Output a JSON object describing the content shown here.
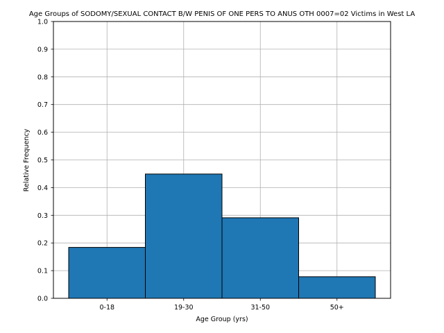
{
  "chart_data": {
    "type": "bar",
    "title": "Age Groups of SODOMY/SEXUAL CONTACT B/W PENIS OF ONE PERS TO ANUS OTH 0007=02 Victims in West LA",
    "xlabel": "Age Group (yrs)",
    "ylabel": "Relative Frequency",
    "categories": [
      "0-18",
      "19-30",
      "31-50",
      "50+"
    ],
    "values": [
      0.184,
      0.449,
      0.291,
      0.078
    ],
    "ylim": [
      0,
      1.0
    ],
    "yticks": [
      0.0,
      0.1,
      0.2,
      0.3,
      0.4,
      0.5,
      0.6,
      0.7,
      0.8,
      0.9,
      1.0
    ],
    "ytick_labels": [
      "0.0",
      "0.1",
      "0.2",
      "0.3",
      "0.4",
      "0.5",
      "0.6",
      "0.7",
      "0.8",
      "0.9",
      "1.0"
    ],
    "grid": true,
    "bar_color": "#1f77b4",
    "edge_color": "#000000"
  }
}
